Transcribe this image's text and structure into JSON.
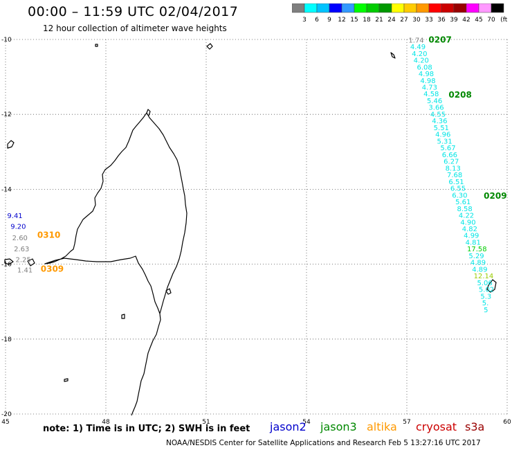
{
  "header": {
    "title": "00:00 – 11:59 UTC 02/04/2017",
    "subtitle": "12 hour collection of altimeter wave heights"
  },
  "colorbar": {
    "colors": [
      "#7f7f7f",
      "#00ffff",
      "#00c3ff",
      "#0000ff",
      "#3399ff",
      "#00ff00",
      "#00cc00",
      "#009900",
      "#ffff00",
      "#ffcc00",
      "#ff9900",
      "#ff0000",
      "#cc0000",
      "#990000",
      "#ff00ff",
      "#ff99ff",
      "#000000"
    ],
    "labels": [
      "3",
      "6",
      "9",
      "12",
      "15",
      "18",
      "21",
      "24",
      "27",
      "30",
      "33",
      "36",
      "39",
      "42",
      "45",
      "70",
      "(ft)"
    ]
  },
  "axes": {
    "lat_labels": [
      "-10",
      "-12",
      "-14",
      "-16",
      "-18",
      "-20"
    ],
    "lon_labels": [
      "45",
      "48",
      "51",
      "54",
      "57",
      "60"
    ]
  },
  "footer": {
    "note": "note: 1) Time is in UTC; 2) SWH is in feet",
    "legend": [
      {
        "name": "jason2",
        "color": "#0000cc"
      },
      {
        "name": "jason3",
        "color": "#008800"
      },
      {
        "name": "altika",
        "color": "#ff9900"
      },
      {
        "name": "cryosat",
        "color": "#cc0000"
      },
      {
        "name": "s3a",
        "color": "#990000"
      }
    ],
    "credit": "NOAA/NESDIS Center for Satellite Applications and Research   Feb  5 13:27:16 UTC 2017"
  },
  "chart_data": {
    "type": "scatter",
    "x_range": [
      45,
      60
    ],
    "y_range": [
      -20,
      -10
    ],
    "xlabel": "",
    "ylabel": "",
    "grid": true,
    "series": [
      {
        "satellite": "jason3 track",
        "text_color": "#00e5e5",
        "points": [
          {
            "lon": 57.05,
            "lat": -10.08,
            "swh": "1.74",
            "color": "#7f7f7f"
          },
          {
            "lon": 57.1,
            "lat": -10.26,
            "swh": "4.49"
          },
          {
            "lon": 57.15,
            "lat": -10.44,
            "swh": "4.20"
          },
          {
            "lon": 57.2,
            "lat": -10.62,
            "swh": "4.20"
          },
          {
            "lon": 57.3,
            "lat": -10.8,
            "swh": "6.08"
          },
          {
            "lon": 57.35,
            "lat": -10.98,
            "swh": "4.98"
          },
          {
            "lon": 57.4,
            "lat": -11.16,
            "swh": "4.98"
          },
          {
            "lon": 57.45,
            "lat": -11.34,
            "swh": "4.73"
          },
          {
            "lon": 57.5,
            "lat": -11.52,
            "swh": "4.58"
          },
          {
            "lon": 57.6,
            "lat": -11.7,
            "swh": "5.46"
          },
          {
            "lon": 57.65,
            "lat": -11.88,
            "swh": "3.66"
          },
          {
            "lon": 57.7,
            "lat": -12.06,
            "swh": "4.55"
          },
          {
            "lon": 57.75,
            "lat": -12.24,
            "swh": "4.36"
          },
          {
            "lon": 57.8,
            "lat": -12.42,
            "swh": "5.51"
          },
          {
            "lon": 57.85,
            "lat": -12.6,
            "swh": "4.96"
          },
          {
            "lon": 57.9,
            "lat": -12.78,
            "swh": "5.31"
          },
          {
            "lon": 58.0,
            "lat": -12.96,
            "swh": "5.67"
          },
          {
            "lon": 58.05,
            "lat": -13.14,
            "swh": "6.66"
          },
          {
            "lon": 58.1,
            "lat": -13.32,
            "swh": "6.27"
          },
          {
            "lon": 58.15,
            "lat": -13.5,
            "swh": "8.13"
          },
          {
            "lon": 58.2,
            "lat": -13.68,
            "swh": "7.68"
          },
          {
            "lon": 58.25,
            "lat": -13.86,
            "swh": "6.51"
          },
          {
            "lon": 58.3,
            "lat": -14.04,
            "swh": "6.55"
          },
          {
            "lon": 58.35,
            "lat": -14.22,
            "swh": "6.30"
          },
          {
            "lon": 58.45,
            "lat": -14.4,
            "swh": "5.61"
          },
          {
            "lon": 58.5,
            "lat": -14.58,
            "swh": "8.58"
          },
          {
            "lon": 58.55,
            "lat": -14.76,
            "swh": "4.22"
          },
          {
            "lon": 58.6,
            "lat": -14.94,
            "swh": "4.90"
          },
          {
            "lon": 58.65,
            "lat": -15.12,
            "swh": "4.82"
          },
          {
            "lon": 58.7,
            "lat": -15.3,
            "swh": "4.99"
          },
          {
            "lon": 58.75,
            "lat": -15.48,
            "swh": "4.81"
          },
          {
            "lon": 58.8,
            "lat": -15.66,
            "swh": "17.58",
            "color": "#00cc00"
          },
          {
            "lon": 58.85,
            "lat": -15.84,
            "swh": "5.29"
          },
          {
            "lon": 58.9,
            "lat": -16.02,
            "swh": "4.89"
          },
          {
            "lon": 58.95,
            "lat": -16.2,
            "swh": "4.89"
          },
          {
            "lon": 59.0,
            "lat": -16.38,
            "swh": "12.14",
            "color": "#99cc00"
          },
          {
            "lon": 59.1,
            "lat": -16.56,
            "swh": "5.06"
          },
          {
            "lon": 59.15,
            "lat": -16.74,
            "swh": "5.02"
          },
          {
            "lon": 59.2,
            "lat": -16.92,
            "swh": "5.3"
          },
          {
            "lon": 59.25,
            "lat": -17.1,
            "swh": "5."
          },
          {
            "lon": 59.3,
            "lat": -17.28,
            "swh": "5"
          }
        ]
      },
      {
        "satellite": "jason2 / altika track",
        "points": [
          {
            "lon": 45.05,
            "lat": -14.77,
            "swh": "9.41",
            "color": "#0000cc"
          },
          {
            "lon": 45.15,
            "lat": -15.06,
            "swh": "9.20",
            "color": "#0000cc"
          },
          {
            "lon": 45.2,
            "lat": -15.36,
            "swh": "2.60",
            "color": "#7f7f7f"
          },
          {
            "lon": 45.25,
            "lat": -15.66,
            "swh": "2.63",
            "color": "#7f7f7f"
          },
          {
            "lon": 45.3,
            "lat": -15.94,
            "swh": "2.25",
            "color": "#7f7f7f"
          },
          {
            "lon": 45.35,
            "lat": -16.22,
            "swh": "1.41",
            "color": "#7f7f7f"
          }
        ]
      }
    ],
    "time_labels": [
      {
        "text": "0207",
        "lon": 57.65,
        "lat": -10.08,
        "color": "#008800"
      },
      {
        "text": "0208",
        "lon": 58.25,
        "lat": -11.55,
        "color": "#008800"
      },
      {
        "text": "0209",
        "lon": 59.3,
        "lat": -14.25,
        "color": "#008800"
      },
      {
        "text": "0310",
        "lon": 45.95,
        "lat": -15.3,
        "color": "#ff9900"
      },
      {
        "text": "0309",
        "lon": 46.05,
        "lat": -16.2,
        "color": "#ff9900"
      }
    ]
  }
}
